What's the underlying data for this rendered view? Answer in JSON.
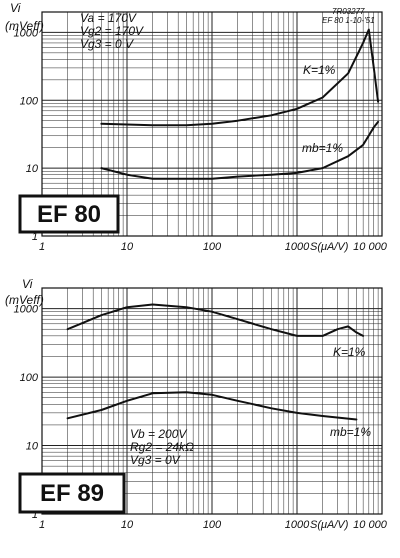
{
  "chart_data": [
    {
      "type": "line",
      "title": "",
      "ylabel_1": "Vi",
      "ylabel_2": "(mVeff)",
      "xlabel": "S(μA/V)",
      "x_scale": "log",
      "y_scale": "log",
      "xlim": [
        1,
        10000
      ],
      "ylim": [
        1,
        2000
      ],
      "x_ticks": [
        "1",
        "10",
        "100",
        "1000",
        "10 000"
      ],
      "y_ticks": [
        "1000",
        "100",
        "10",
        "1"
      ],
      "ref_code": "7R03277",
      "ref_date": "EF 80  1-10-'51",
      "conditions": [
        "Va = 170V",
        "Vg2 = 170V",
        "Vg3 = 0 V"
      ],
      "tube": "EF 80",
      "series": [
        {
          "name": "K=1%",
          "x": [
            5,
            10,
            20,
            50,
            100,
            200,
            500,
            1000,
            2000,
            4000,
            6000,
            7000,
            8000,
            9000
          ],
          "y": [
            45,
            44,
            43,
            43,
            45,
            50,
            60,
            75,
            110,
            250,
            700,
            1100,
            300,
            95
          ]
        },
        {
          "name": "mb=1%",
          "x": [
            5,
            10,
            20,
            50,
            100,
            200,
            500,
            1000,
            2000,
            4000,
            6000,
            8000,
            9000
          ],
          "y": [
            10,
            8,
            7,
            7,
            7,
            7.5,
            8,
            8.5,
            10,
            15,
            22,
            40,
            48
          ]
        }
      ]
    },
    {
      "type": "line",
      "title": "",
      "ylabel_1": "Vi",
      "ylabel_2": "(mVeff)",
      "xlabel": "S(μA/V)",
      "x_scale": "log",
      "y_scale": "log",
      "xlim": [
        1,
        10000
      ],
      "ylim": [
        1,
        2000
      ],
      "x_ticks": [
        "1",
        "10",
        "100",
        "1000",
        "10 000"
      ],
      "y_ticks": [
        "1000",
        "100",
        "10",
        "1"
      ],
      "conditions": [
        "Vb = 200V",
        "Rg2 = 24kΩ",
        "Vg3 = 0V"
      ],
      "tube": "EF 89",
      "series": [
        {
          "name": "K=1%",
          "x": [
            2,
            5,
            10,
            20,
            50,
            100,
            200,
            500,
            1000,
            2000,
            3000,
            4000,
            5000,
            6000
          ],
          "y": [
            500,
            800,
            1050,
            1150,
            1050,
            900,
            700,
            500,
            400,
            400,
            500,
            550,
            450,
            400
          ]
        },
        {
          "name": "mb=1%",
          "x": [
            2,
            5,
            10,
            20,
            50,
            100,
            200,
            500,
            1000,
            2000,
            5000
          ],
          "y": [
            25,
            33,
            45,
            58,
            60,
            55,
            45,
            35,
            30,
            27,
            24
          ]
        }
      ]
    }
  ]
}
